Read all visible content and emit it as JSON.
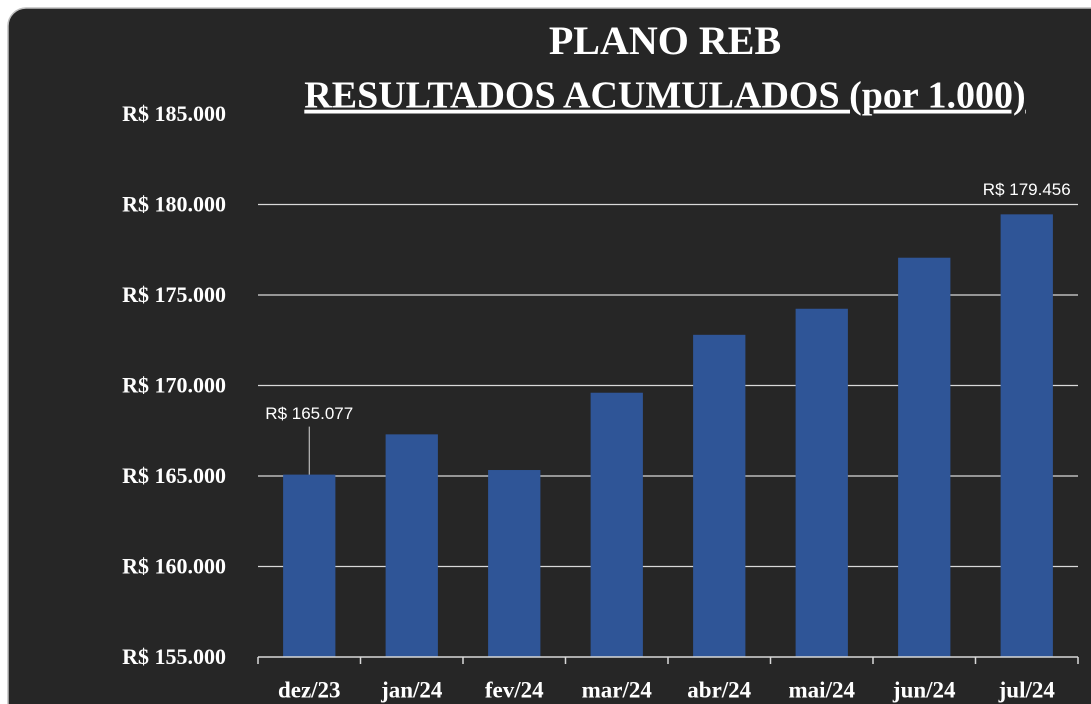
{
  "chart_data": {
    "type": "bar",
    "title": "PLANO REB",
    "subtitle": "RESULTADOS ACUMULADOS (por 1.000)",
    "categories": [
      "dez/23",
      "jan/24",
      "fev/24",
      "mar/24",
      "abr/24",
      "mai/24",
      "jun/24",
      "jul/24"
    ],
    "values": [
      165077,
      167300,
      165330,
      169600,
      172800,
      174240,
      177060,
      179456
    ],
    "value_labels": [
      "R$ 165.077",
      null,
      null,
      null,
      null,
      null,
      null,
      "R$ 179.456"
    ],
    "color": "#2f5597",
    "ylim": [
      155000,
      185000
    ],
    "yticks": [
      {
        "value": 155000,
        "label": "R$ 155.000"
      },
      {
        "value": 160000,
        "label": "R$ 160.000"
      },
      {
        "value": 165000,
        "label": "R$ 165.000"
      },
      {
        "value": 170000,
        "label": "R$ 170.000"
      },
      {
        "value": 175000,
        "label": "R$ 175.000"
      },
      {
        "value": 180000,
        "label": "R$ 180.000"
      },
      {
        "value": 185000,
        "label": "R$ 185.000"
      }
    ],
    "grid": true
  }
}
